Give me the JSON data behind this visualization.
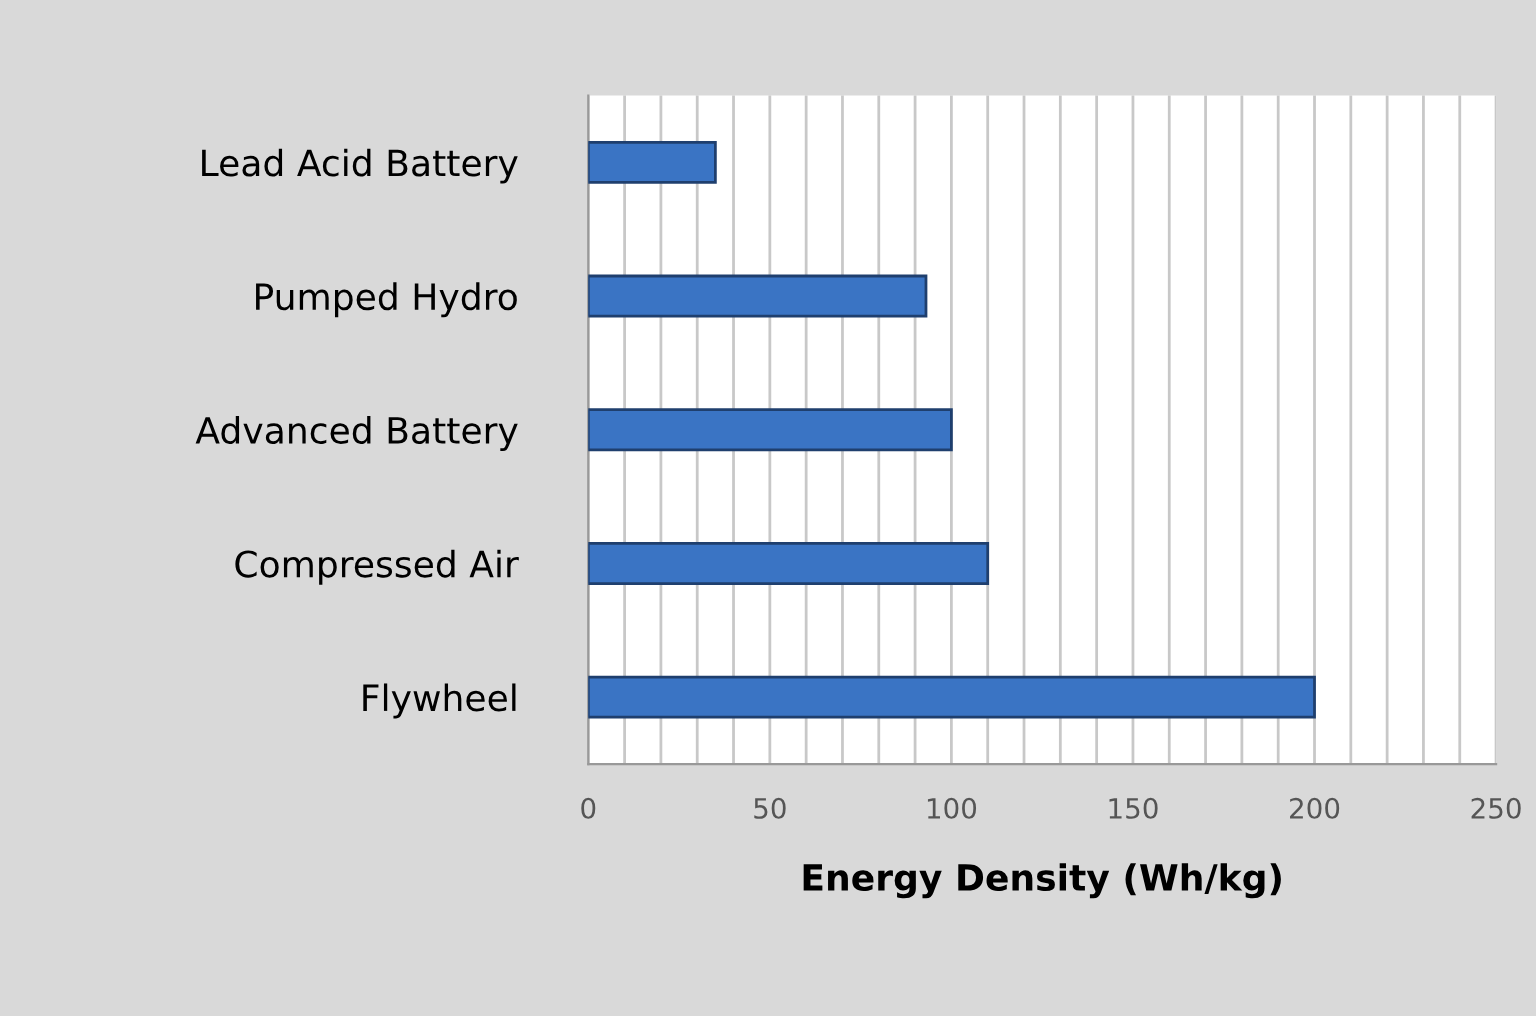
{
  "chart_data": {
    "type": "bar",
    "orientation": "horizontal",
    "xlabel": "Energy Density (Wh/kg)",
    "categories": [
      "Lead Acid Battery",
      "Pumped Hydro",
      "Advanced Battery",
      "Compressed Air",
      "Flywheel"
    ],
    "values": [
      35,
      93,
      100,
      110,
      200
    ],
    "color": "#3a74c4",
    "xlim": [
      0,
      250
    ],
    "xticks": [
      0,
      {
        "value": 10,
        "label": null
      },
      {
        "value": 20,
        "label": null
      },
      {
        "value": 30,
        "label": null
      },
      {
        "value": 40,
        "label": null
      },
      50,
      {
        "value": 60,
        "label": null
      },
      {
        "value": 70,
        "label": null
      },
      {
        "value": 80,
        "label": null
      },
      {
        "value": 90,
        "label": null
      },
      100,
      {
        "value": 110,
        "label": null
      },
      {
        "value": 120,
        "label": null
      },
      {
        "value": 130,
        "label": null
      },
      {
        "value": 140,
        "label": null
      },
      150,
      {
        "value": 160,
        "label": null
      },
      {
        "value": 170,
        "label": null
      },
      {
        "value": 180,
        "label": null
      },
      {
        "value": 190,
        "label": null
      },
      200,
      {
        "value": 210,
        "label": null
      },
      {
        "value": 220,
        "label": null
      },
      {
        "value": 230,
        "label": null
      },
      {
        "value": 240,
        "label": null
      },
      250
    ],
    "grid": "x",
    "legend": false
  }
}
